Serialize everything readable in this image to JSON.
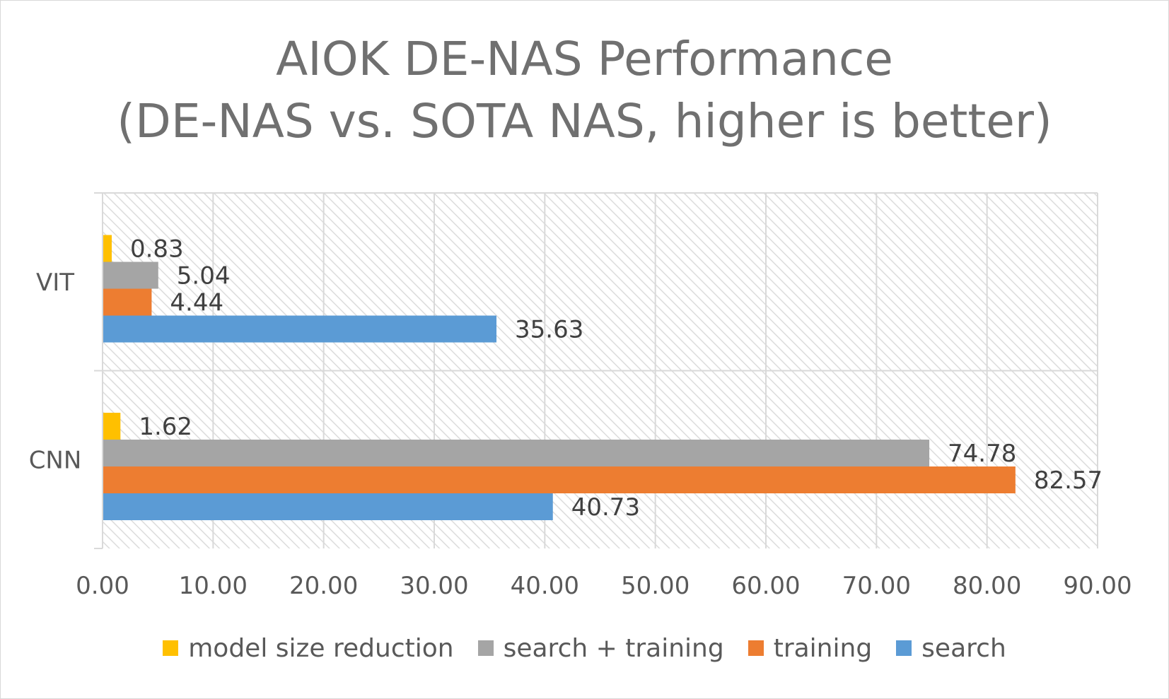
{
  "chart_data": {
    "type": "bar",
    "orientation": "horizontal",
    "title_lines": [
      "AIOK DE-NAS Performance",
      "(DE-NAS vs. SOTA NAS, higher is better)"
    ],
    "categories": [
      "CNN",
      "VIT"
    ],
    "series": [
      {
        "name": "search",
        "color": "#5b9bd5",
        "values": [
          40.73,
          35.63
        ],
        "labels": [
          "40.73",
          "35.63"
        ]
      },
      {
        "name": "training",
        "color": "#ed7d31",
        "values": [
          82.57,
          4.44
        ],
        "labels": [
          "82.57",
          "4.44"
        ]
      },
      {
        "name": "search + training",
        "color": "#a5a5a5",
        "values": [
          74.78,
          5.04
        ],
        "labels": [
          "74.78",
          "5.04"
        ]
      },
      {
        "name": "model size reduction",
        "color": "#ffc000",
        "values": [
          1.62,
          0.83
        ],
        "labels": [
          "1.62",
          "0.83"
        ]
      }
    ],
    "xlim": [
      0,
      90
    ],
    "xticks": [
      "0.00",
      "10.00",
      "20.00",
      "30.00",
      "40.00",
      "50.00",
      "60.00",
      "70.00",
      "80.00",
      "90.00"
    ],
    "grid": true,
    "plot_background": "diagonal-hatch",
    "legend": {
      "position": "bottom",
      "order": [
        "model size reduction",
        "search + training",
        "training",
        "search"
      ]
    }
  }
}
